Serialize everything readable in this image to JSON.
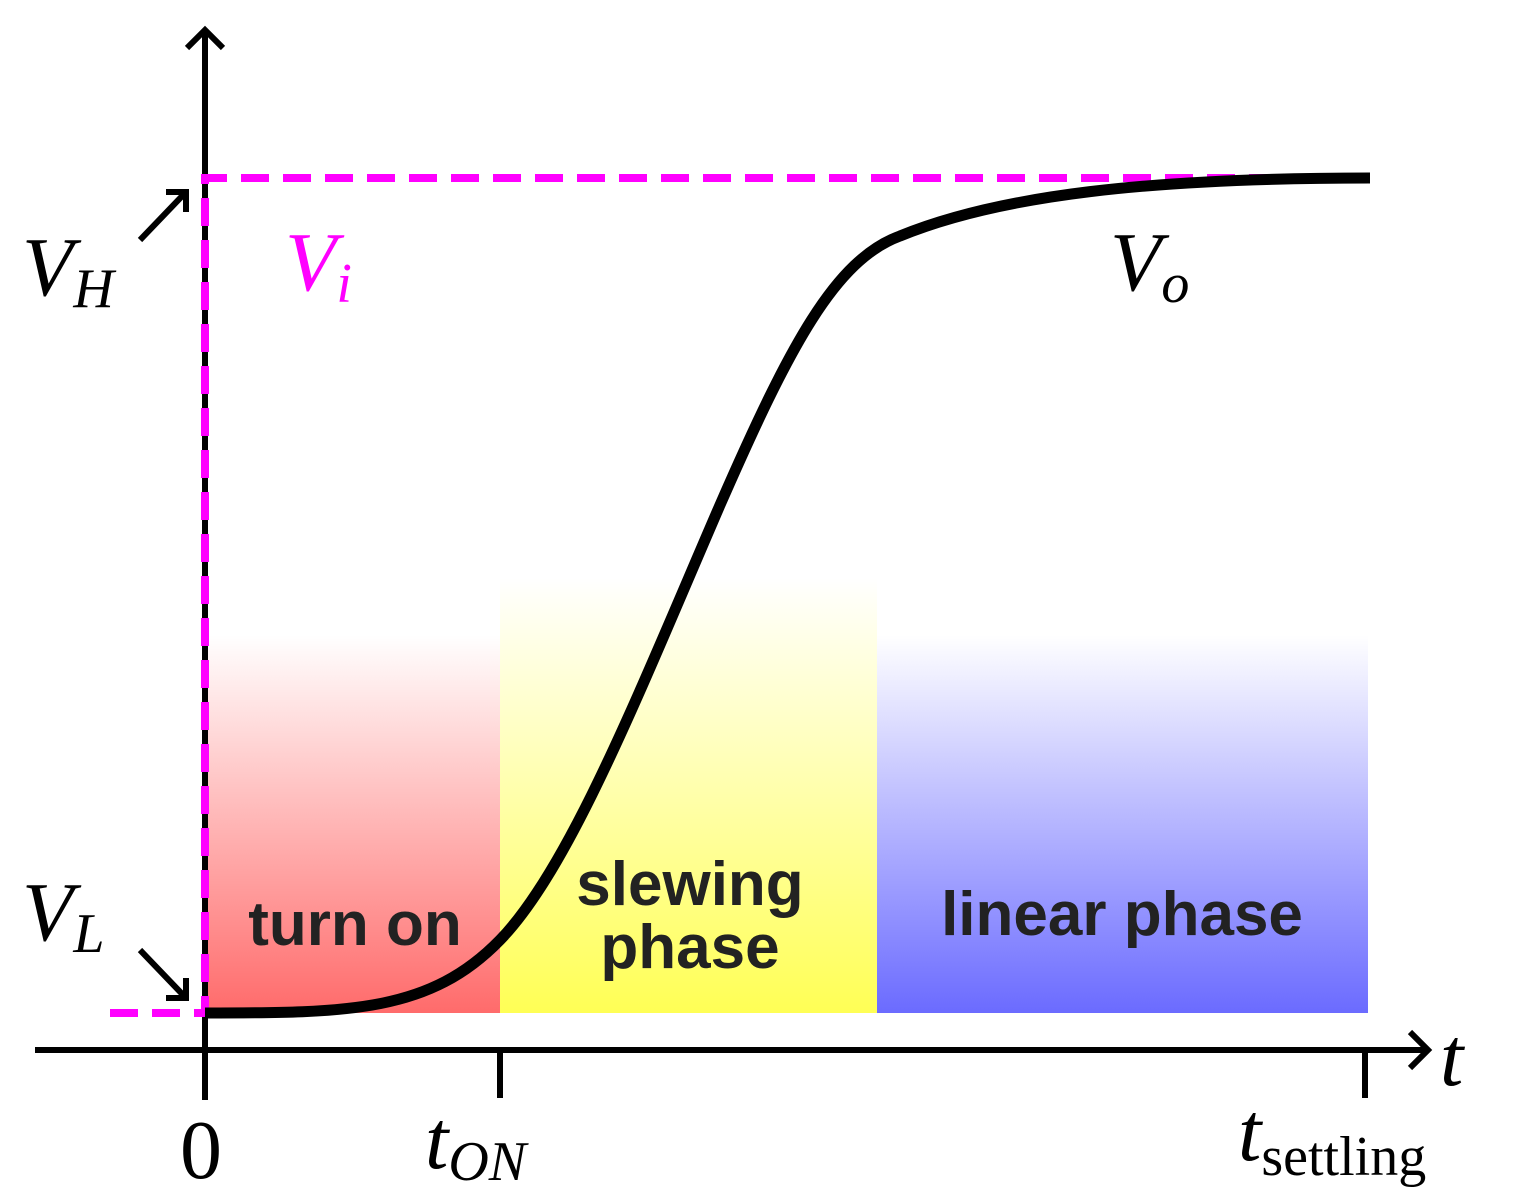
{
  "signals": {
    "input": {
      "base": "V",
      "sub": "i"
    },
    "output": {
      "base": "V",
      "sub": "o"
    }
  },
  "levels": {
    "high": {
      "base": "V",
      "sub": "H"
    },
    "low": {
      "base": "V",
      "sub": "L"
    }
  },
  "x_axis": {
    "label": "t",
    "ticks": [
      {
        "base": "0"
      },
      {
        "base": "t",
        "sub": "ON"
      },
      {
        "base": "t",
        "sub": "settling"
      }
    ]
  },
  "phases": [
    {
      "lines": [
        "turn on"
      ]
    },
    {
      "lines": [
        "slewing",
        "phase"
      ]
    },
    {
      "lines": [
        "linear phase"
      ]
    }
  ]
}
